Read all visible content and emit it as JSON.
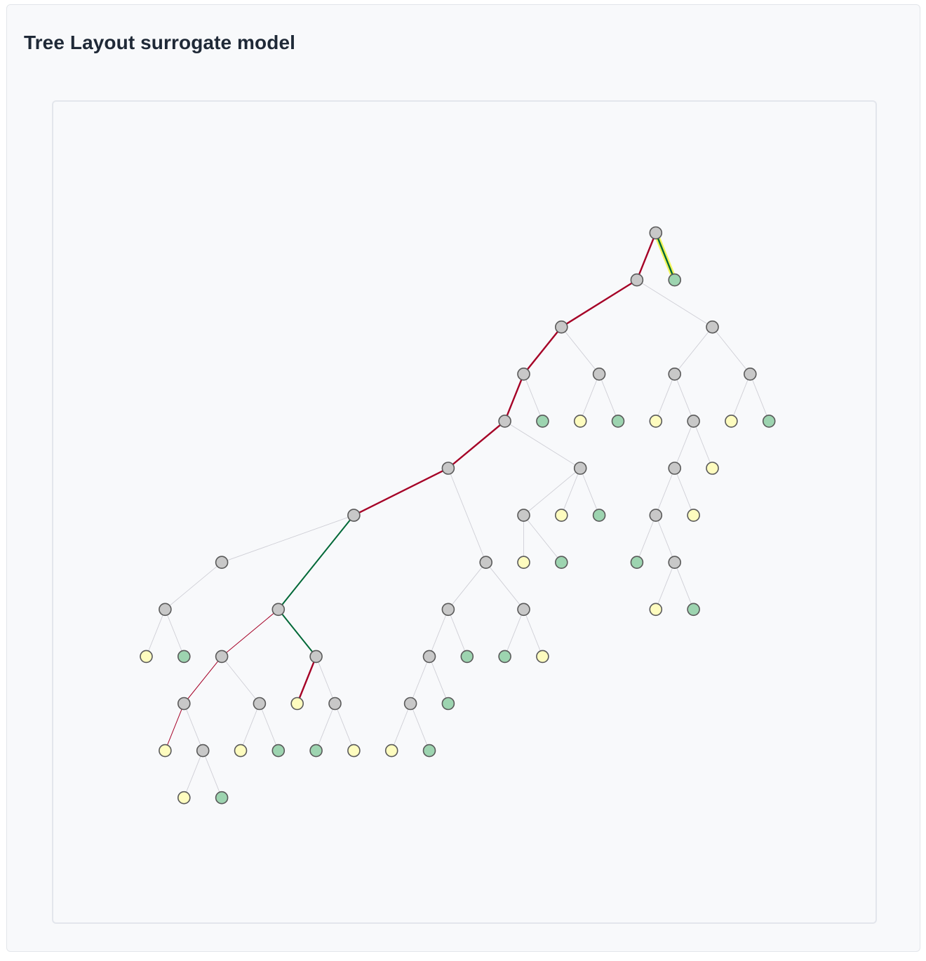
{
  "card": {
    "title": "Tree Layout surrogate model"
  },
  "legend_colors": {
    "internal_node": "#c8c8c8",
    "leaf_green": "#9dd4b0",
    "leaf_yellow": "#fefcbf",
    "node_stroke": "#5a5a5a",
    "path_red": "#a50026",
    "path_green": "#006837",
    "highlight_yellow": "#f2f55a",
    "edge_faint": "#cfcfd6"
  },
  "tree": {
    "nodes": [
      {
        "id": "n0",
        "col": 27,
        "row": 0,
        "kind": "internal"
      },
      {
        "id": "n1",
        "col": 26,
        "row": 1,
        "kind": "internal"
      },
      {
        "id": "n2",
        "col": 28,
        "row": 1,
        "kind": "leaf-green"
      },
      {
        "id": "n3",
        "col": 22,
        "row": 2,
        "kind": "internal"
      },
      {
        "id": "n4",
        "col": 30,
        "row": 2,
        "kind": "internal"
      },
      {
        "id": "n5",
        "col": 20,
        "row": 3,
        "kind": "internal"
      },
      {
        "id": "n6",
        "col": 24,
        "row": 3,
        "kind": "internal"
      },
      {
        "id": "n7",
        "col": 28,
        "row": 3,
        "kind": "internal"
      },
      {
        "id": "n8",
        "col": 32,
        "row": 3,
        "kind": "internal"
      },
      {
        "id": "n9",
        "col": 19,
        "row": 4,
        "kind": "internal"
      },
      {
        "id": "n10",
        "col": 21,
        "row": 4,
        "kind": "leaf-green"
      },
      {
        "id": "n11",
        "col": 23,
        "row": 4,
        "kind": "leaf-yellow"
      },
      {
        "id": "n12",
        "col": 25,
        "row": 4,
        "kind": "leaf-green"
      },
      {
        "id": "n13",
        "col": 27,
        "row": 4,
        "kind": "leaf-yellow"
      },
      {
        "id": "n14",
        "col": 29,
        "row": 4,
        "kind": "internal"
      },
      {
        "id": "n15",
        "col": 31,
        "row": 4,
        "kind": "leaf-yellow"
      },
      {
        "id": "n16",
        "col": 33,
        "row": 4,
        "kind": "leaf-green"
      },
      {
        "id": "n17",
        "col": 16,
        "row": 5,
        "kind": "internal"
      },
      {
        "id": "n18",
        "col": 23,
        "row": 5,
        "kind": "internal"
      },
      {
        "id": "n19",
        "col": 28,
        "row": 5,
        "kind": "internal"
      },
      {
        "id": "n20",
        "col": 30,
        "row": 5,
        "kind": "leaf-yellow"
      },
      {
        "id": "n21",
        "col": 11,
        "row": 6,
        "kind": "internal"
      },
      {
        "id": "n22",
        "col": 20,
        "row": 6,
        "kind": "internal"
      },
      {
        "id": "n23",
        "col": 22,
        "row": 6,
        "kind": "leaf-yellow"
      },
      {
        "id": "n24",
        "col": 24,
        "row": 6,
        "kind": "leaf-green"
      },
      {
        "id": "n25",
        "col": 27,
        "row": 6,
        "kind": "internal"
      },
      {
        "id": "n26",
        "col": 29,
        "row": 6,
        "kind": "leaf-yellow"
      },
      {
        "id": "n27",
        "col": 4,
        "row": 7,
        "kind": "internal"
      },
      {
        "id": "n28",
        "col": 18,
        "row": 7,
        "kind": "internal"
      },
      {
        "id": "n29",
        "col": 20,
        "row": 7,
        "kind": "leaf-yellow"
      },
      {
        "id": "n30",
        "col": 22,
        "row": 7,
        "kind": "leaf-green"
      },
      {
        "id": "n31",
        "col": 26,
        "row": 7,
        "kind": "leaf-green"
      },
      {
        "id": "n32",
        "col": 28,
        "row": 7,
        "kind": "internal"
      },
      {
        "id": "n33",
        "col": 1,
        "row": 8,
        "kind": "internal"
      },
      {
        "id": "n34",
        "col": 7,
        "row": 8,
        "kind": "internal"
      },
      {
        "id": "n35",
        "col": 16,
        "row": 8,
        "kind": "internal"
      },
      {
        "id": "n36",
        "col": 20,
        "row": 8,
        "kind": "internal"
      },
      {
        "id": "n37",
        "col": 27,
        "row": 8,
        "kind": "leaf-yellow"
      },
      {
        "id": "n38",
        "col": 29,
        "row": 8,
        "kind": "leaf-green"
      },
      {
        "id": "n39",
        "col": 0,
        "row": 9,
        "kind": "leaf-yellow"
      },
      {
        "id": "n40",
        "col": 2,
        "row": 9,
        "kind": "leaf-green"
      },
      {
        "id": "n41",
        "col": 4,
        "row": 9,
        "kind": "internal"
      },
      {
        "id": "n42",
        "col": 9,
        "row": 9,
        "kind": "internal"
      },
      {
        "id": "n43",
        "col": 15,
        "row": 9,
        "kind": "internal"
      },
      {
        "id": "n44",
        "col": 17,
        "row": 9,
        "kind": "leaf-green"
      },
      {
        "id": "n45",
        "col": 19,
        "row": 9,
        "kind": "leaf-green"
      },
      {
        "id": "n46",
        "col": 21,
        "row": 9,
        "kind": "leaf-yellow"
      },
      {
        "id": "n47",
        "col": 2,
        "row": 10,
        "kind": "internal"
      },
      {
        "id": "n48",
        "col": 6,
        "row": 10,
        "kind": "internal"
      },
      {
        "id": "n49",
        "col": 8,
        "row": 10,
        "kind": "leaf-yellow"
      },
      {
        "id": "n50",
        "col": 10,
        "row": 10,
        "kind": "internal"
      },
      {
        "id": "n51",
        "col": 14,
        "row": 10,
        "kind": "internal"
      },
      {
        "id": "n52",
        "col": 16,
        "row": 10,
        "kind": "leaf-green"
      },
      {
        "id": "n53",
        "col": 1,
        "row": 11,
        "kind": "leaf-yellow"
      },
      {
        "id": "n54",
        "col": 3,
        "row": 11,
        "kind": "internal"
      },
      {
        "id": "n55",
        "col": 5,
        "row": 11,
        "kind": "leaf-yellow"
      },
      {
        "id": "n56",
        "col": 7,
        "row": 11,
        "kind": "leaf-green"
      },
      {
        "id": "n57",
        "col": 9,
        "row": 11,
        "kind": "leaf-green"
      },
      {
        "id": "n58",
        "col": 11,
        "row": 11,
        "kind": "leaf-yellow"
      },
      {
        "id": "n59",
        "col": 13,
        "row": 11,
        "kind": "leaf-yellow"
      },
      {
        "id": "n60",
        "col": 15,
        "row": 11,
        "kind": "leaf-green"
      },
      {
        "id": "n61",
        "col": 2,
        "row": 12,
        "kind": "leaf-yellow"
      },
      {
        "id": "n62",
        "col": 4,
        "row": 12,
        "kind": "leaf-green"
      }
    ],
    "edges": [
      [
        "n0",
        "n1",
        "red"
      ],
      [
        "n0",
        "n2",
        "green-highlight"
      ],
      [
        "n1",
        "n3",
        "red"
      ],
      [
        "n1",
        "n4",
        "faint"
      ],
      [
        "n3",
        "n5",
        "red"
      ],
      [
        "n3",
        "n6",
        "faint"
      ],
      [
        "n4",
        "n7",
        "faint"
      ],
      [
        "n4",
        "n8",
        "faint"
      ],
      [
        "n5",
        "n9",
        "red"
      ],
      [
        "n5",
        "n10",
        "faint"
      ],
      [
        "n6",
        "n11",
        "faint"
      ],
      [
        "n6",
        "n12",
        "faint"
      ],
      [
        "n7",
        "n13",
        "faint"
      ],
      [
        "n7",
        "n14",
        "faint"
      ],
      [
        "n8",
        "n15",
        "faint"
      ],
      [
        "n8",
        "n16",
        "faint"
      ],
      [
        "n9",
        "n17",
        "red"
      ],
      [
        "n9",
        "n18",
        "faint"
      ],
      [
        "n14",
        "n19",
        "faint"
      ],
      [
        "n14",
        "n20",
        "faint"
      ],
      [
        "n17",
        "n21",
        "red"
      ],
      [
        "n17",
        "n28",
        "faint"
      ],
      [
        "n18",
        "n22",
        "faint"
      ],
      [
        "n18",
        "n23",
        "faint"
      ],
      [
        "n18",
        "n24",
        "faint"
      ],
      [
        "n19",
        "n25",
        "faint"
      ],
      [
        "n19",
        "n26",
        "faint"
      ],
      [
        "n21",
        "n27",
        "faint"
      ],
      [
        "n21",
        "n34",
        "green"
      ],
      [
        "n22",
        "n29",
        "faint"
      ],
      [
        "n22",
        "n30",
        "faint"
      ],
      [
        "n25",
        "n31",
        "faint"
      ],
      [
        "n25",
        "n32",
        "faint"
      ],
      [
        "n27",
        "n33",
        "faint"
      ],
      [
        "n28",
        "n35",
        "faint"
      ],
      [
        "n28",
        "n36",
        "faint"
      ],
      [
        "n32",
        "n37",
        "faint"
      ],
      [
        "n32",
        "n38",
        "faint"
      ],
      [
        "n33",
        "n39",
        "faint"
      ],
      [
        "n33",
        "n40",
        "faint"
      ],
      [
        "n34",
        "n41",
        "red-thin"
      ],
      [
        "n34",
        "n42",
        "green"
      ],
      [
        "n35",
        "n43",
        "faint"
      ],
      [
        "n35",
        "n44",
        "faint"
      ],
      [
        "n36",
        "n45",
        "faint"
      ],
      [
        "n36",
        "n46",
        "faint"
      ],
      [
        "n41",
        "n47",
        "red-thin"
      ],
      [
        "n41",
        "n48",
        "faint"
      ],
      [
        "n42",
        "n49",
        "red"
      ],
      [
        "n42",
        "n50",
        "faint"
      ],
      [
        "n43",
        "n51",
        "faint"
      ],
      [
        "n43",
        "n52",
        "faint"
      ],
      [
        "n47",
        "n53",
        "red-thin"
      ],
      [
        "n47",
        "n54",
        "faint"
      ],
      [
        "n48",
        "n55",
        "faint"
      ],
      [
        "n48",
        "n56",
        "faint"
      ],
      [
        "n50",
        "n57",
        "faint"
      ],
      [
        "n50",
        "n58",
        "faint"
      ],
      [
        "n51",
        "n59",
        "faint"
      ],
      [
        "n51",
        "n60",
        "faint"
      ],
      [
        "n54",
        "n61",
        "faint"
      ],
      [
        "n54",
        "n62",
        "faint"
      ]
    ]
  }
}
